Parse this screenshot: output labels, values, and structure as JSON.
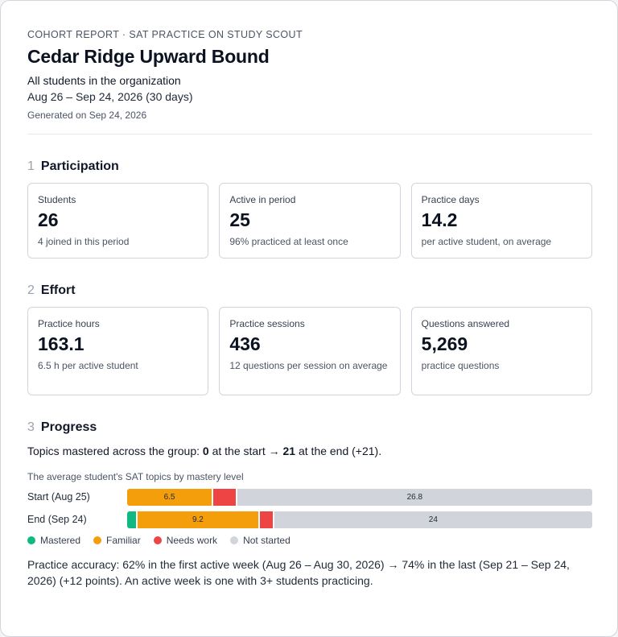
{
  "header": {
    "eyebrow": "COHORT REPORT · SAT PRACTICE ON STUDY SCOUT",
    "title": "Cedar Ridge Upward Bound",
    "scope": "All students in the organization",
    "date_range": "Aug 26 – Sep 24, 2026 (30 days)",
    "generated": "Generated on Sep 24, 2026"
  },
  "participation": {
    "num": "1",
    "heading": "Participation",
    "cards": [
      {
        "label": "Students",
        "value": "26",
        "sub": "4 joined in this period"
      },
      {
        "label": "Active in period",
        "value": "25",
        "sub": "96% practiced at least once"
      },
      {
        "label": "Practice days",
        "value": "14.2",
        "sub": "per active student, on average"
      }
    ]
  },
  "effort": {
    "num": "2",
    "heading": "Effort",
    "cards": [
      {
        "label": "Practice hours",
        "value": "163.1",
        "sub": "6.5 h per active student"
      },
      {
        "label": "Practice sessions",
        "value": "436",
        "sub": "12 questions per session on average"
      },
      {
        "label": "Questions answered",
        "value": "5,269",
        "sub": "practice questions"
      }
    ]
  },
  "progress": {
    "num": "3",
    "heading": "Progress",
    "summary_prefix": "Topics mastered across the group: ",
    "summary_start": "0",
    "summary_mid": " at the start → ",
    "summary_end": "21",
    "summary_suffix": " at the end (+21).",
    "caption": "The average student's SAT topics by mastery level",
    "accuracy": "Practice accuracy: 62% in the first active week (Aug 26 – Aug 30, 2026) → 74% in the last (Sep 21 – Sep 24, 2026) (+12 points). An active week is one with 3+ students practicing."
  },
  "chart_data": {
    "type": "bar",
    "orientation": "horizontal",
    "stacked": true,
    "categories": [
      "Start (Aug 25)",
      "End (Sep 24)"
    ],
    "series": [
      {
        "name": "Mastered",
        "color": "#10b981",
        "values": [
          0,
          0.8
        ]
      },
      {
        "name": "Familiar",
        "color": "#f59e0b",
        "values": [
          6.5,
          9.2
        ]
      },
      {
        "name": "Needs work",
        "color": "#ef4444",
        "values": [
          1.8,
          1.1
        ]
      },
      {
        "name": "Not started",
        "color": "#d1d5db",
        "values": [
          26.8,
          24
        ]
      }
    ],
    "labeled_series": [
      "Familiar",
      "Not started"
    ],
    "legend_position": "bottom-left"
  }
}
